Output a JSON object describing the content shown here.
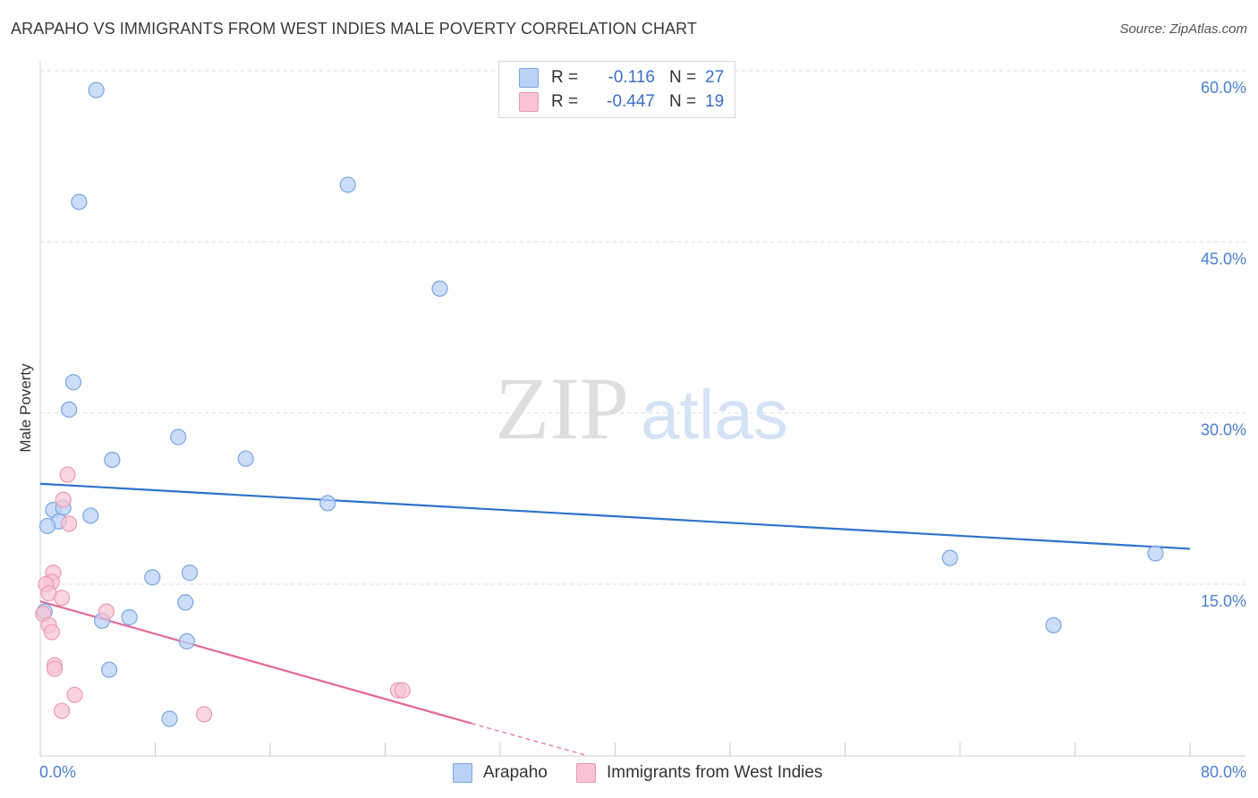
{
  "title": "ARAPAHO VS IMMIGRANTS FROM WEST INDIES MALE POVERTY CORRELATION CHART",
  "source": "Source: ZipAtlas.com",
  "watermark": {
    "zip": "ZIP",
    "atlas": "atlas"
  },
  "colors": {
    "arapaho_fill": "#b9d2f5",
    "arapaho_stroke": "#7aa6e0",
    "arapaho_line": "#2f72cc",
    "wi_fill": "#f8c3d3",
    "wi_stroke": "#eb9ab3",
    "wi_line": "#e46a95",
    "tick_text": "#4a7fd0",
    "grid": "#dddddd"
  },
  "legend": {
    "rows": [
      {
        "r_label": "R =",
        "r_value": "-0.116",
        "n_label": "N =",
        "n_value": "27"
      },
      {
        "r_label": "R =",
        "r_value": "-0.447",
        "n_label": "N =",
        "n_value": "19"
      }
    ]
  },
  "bottom_legend": [
    "Arapaho",
    "Immigrants from West Indies"
  ],
  "chart_data": {
    "type": "scatter",
    "title": "ARAPAHO VS IMMIGRANTS FROM WEST INDIES MALE POVERTY CORRELATION CHART",
    "xlabel": "",
    "ylabel": "Male Poverty",
    "xlim": [
      0,
      80
    ],
    "ylim": [
      0,
      63
    ],
    "x_tick_labels": [
      "0.0%",
      "80.0%"
    ],
    "y_ticks": [
      15,
      30,
      45,
      60
    ],
    "y_tick_labels": [
      "15.0%",
      "30.0%",
      "45.0%",
      "60.0%"
    ],
    "series": [
      {
        "name": "Arapaho",
        "points": [
          [
            3.9,
            58.3
          ],
          [
            2.7,
            48.5
          ],
          [
            21.4,
            50.0
          ],
          [
            27.8,
            40.9
          ],
          [
            2.3,
            32.7
          ],
          [
            2.0,
            30.3
          ],
          [
            9.6,
            27.9
          ],
          [
            5.0,
            25.9
          ],
          [
            14.3,
            26.0
          ],
          [
            20.0,
            22.1
          ],
          [
            0.9,
            21.5
          ],
          [
            1.6,
            21.7
          ],
          [
            3.5,
            21.0
          ],
          [
            1.3,
            20.5
          ],
          [
            0.5,
            20.1
          ],
          [
            10.4,
            16.0
          ],
          [
            7.8,
            15.6
          ],
          [
            10.1,
            13.4
          ],
          [
            0.3,
            12.6
          ],
          [
            6.2,
            12.1
          ],
          [
            4.3,
            11.8
          ],
          [
            10.2,
            10.0
          ],
          [
            4.8,
            7.5
          ],
          [
            9.0,
            3.2
          ],
          [
            63.3,
            17.3
          ],
          [
            77.6,
            17.7
          ],
          [
            70.5,
            11.4
          ]
        ],
        "trend": {
          "x": [
            0,
            80
          ],
          "y": [
            23.8,
            18.1
          ]
        }
      },
      {
        "name": "Immigrants from West Indies",
        "points": [
          [
            1.9,
            24.6
          ],
          [
            1.6,
            22.4
          ],
          [
            2.0,
            20.3
          ],
          [
            0.9,
            16.0
          ],
          [
            0.8,
            15.2
          ],
          [
            0.4,
            15.0
          ],
          [
            0.6,
            14.2
          ],
          [
            1.5,
            13.8
          ],
          [
            4.6,
            12.6
          ],
          [
            0.2,
            12.4
          ],
          [
            0.6,
            11.4
          ],
          [
            0.8,
            10.8
          ],
          [
            1.0,
            7.9
          ],
          [
            1.0,
            7.6
          ],
          [
            2.4,
            5.3
          ],
          [
            1.5,
            3.9
          ],
          [
            11.4,
            3.6
          ],
          [
            24.9,
            5.7
          ],
          [
            25.2,
            5.7
          ]
        ],
        "trend": {
          "x": [
            0,
            30
          ],
          "y": [
            13.5,
            2.8
          ]
        },
        "trend_dashed": {
          "x": [
            30,
            38
          ],
          "y": [
            2.8,
            0
          ]
        }
      }
    ]
  }
}
